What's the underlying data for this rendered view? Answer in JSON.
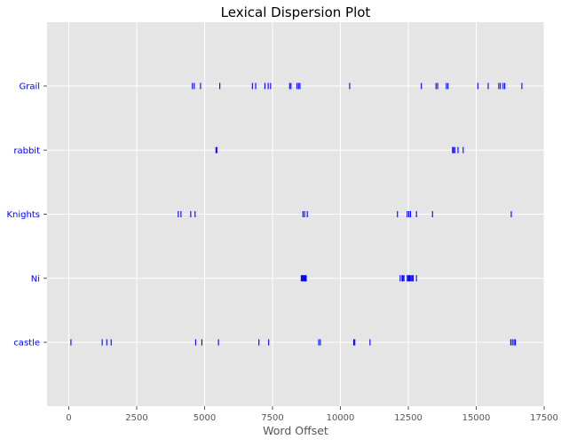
{
  "chart_data": {
    "type": "scatter",
    "title": "Lexical Dispersion Plot",
    "xlabel": "Word Offset",
    "ylabel": "",
    "xlim": [
      -800,
      17500
    ],
    "x_ticks": [
      0,
      2500,
      5000,
      7500,
      10000,
      12500,
      15000,
      17500
    ],
    "x_tick_labels": [
      "0",
      "2500",
      "5000",
      "7500",
      "10000",
      "12500",
      "15000",
      "17500"
    ],
    "grid": true,
    "marker": "|",
    "marker_color": "#0000ff",
    "axes_background": "#e5e5e5",
    "grid_color": "#ffffff",
    "categories": [
      "Grail",
      "rabbit",
      "Knights",
      "Ni",
      "castle"
    ],
    "series": [
      {
        "name": "Grail",
        "x": [
          4550,
          4620,
          4850,
          5560,
          6760,
          6880,
          7220,
          7340,
          7430,
          8130,
          8180,
          8400,
          8460,
          8510,
          10340,
          12980,
          13520,
          13580,
          13900,
          13960,
          15060,
          15440,
          15830,
          15890,
          15990,
          16050,
          16680
        ]
      },
      {
        "name": "rabbit",
        "x": [
          5420,
          5450,
          14130,
          14160,
          14210,
          14330,
          14520
        ]
      },
      {
        "name": "Knights",
        "x": [
          4030,
          4130,
          4490,
          4650,
          8620,
          8680,
          8780,
          12100,
          12460,
          12520,
          12580,
          12800,
          13390,
          16290
        ]
      },
      {
        "name": "Ni",
        "x": [
          8560,
          8590,
          8620,
          8650,
          8680,
          8710,
          8740,
          12200,
          12270,
          12300,
          12340,
          12460,
          12500,
          12530,
          12560,
          12600,
          12640,
          12680,
          12800
        ]
      },
      {
        "name": "castle",
        "x": [
          80,
          1230,
          1400,
          1560,
          4670,
          4900,
          5510,
          7000,
          7360,
          9200,
          9260,
          10490,
          10530,
          11090,
          16270,
          16330,
          16390,
          16440
        ]
      }
    ]
  }
}
